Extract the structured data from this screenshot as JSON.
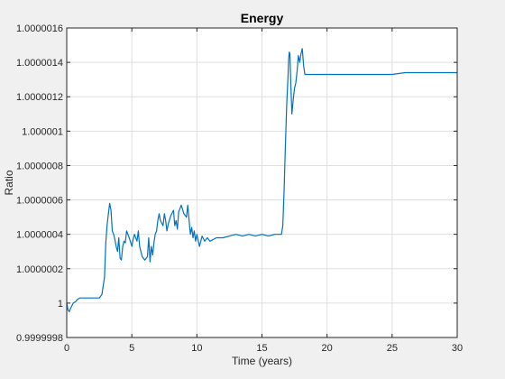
{
  "chart_data": {
    "type": "line",
    "title": "Energy",
    "xlabel": "Time (years)",
    "ylabel": "Ratio",
    "xlim": [
      0,
      30
    ],
    "ylim": [
      0.9999998,
      1.0000016
    ],
    "x_ticks": [
      0,
      5,
      10,
      15,
      20,
      25,
      30
    ],
    "x_tick_labels": [
      "0",
      "5",
      "10",
      "15",
      "20",
      "25",
      "30"
    ],
    "y_ticks": [
      0.9999998,
      1.0,
      1.0000002,
      1.0000004,
      1.0000006,
      1.0000008,
      1.000001,
      1.0000012,
      1.0000014,
      1.0000016
    ],
    "y_tick_labels": [
      "0.9999998",
      "1",
      "1.0000002",
      "1.0000004",
      "1.0000006",
      "1.0000008",
      "1.000001",
      "1.0000012",
      "1.0000014",
      "1.0000016"
    ],
    "grid": true,
    "series": [
      {
        "color": "#0072bd",
        "x": [
          0,
          0.1,
          0.2,
          0.3,
          0.5,
          0.7,
          0.8,
          1.0,
          1.5,
          2.0,
          2.5,
          2.7,
          2.9,
          3.0,
          3.1,
          3.2,
          3.3,
          3.4,
          3.5,
          3.6,
          3.7,
          3.8,
          3.9,
          4.0,
          4.1,
          4.2,
          4.3,
          4.4,
          4.5,
          4.6,
          4.8,
          5.0,
          5.1,
          5.2,
          5.4,
          5.5,
          5.6,
          5.8,
          6.0,
          6.2,
          6.3,
          6.4,
          6.5,
          6.6,
          6.7,
          6.8,
          6.9,
          7.0,
          7.1,
          7.2,
          7.4,
          7.5,
          7.6,
          7.7,
          7.8,
          8.0,
          8.2,
          8.3,
          8.4,
          8.5,
          8.6,
          8.8,
          9.0,
          9.2,
          9.3,
          9.5,
          9.6,
          9.7,
          9.8,
          9.9,
          10.0,
          10.2,
          10.4,
          10.6,
          10.8,
          11.0,
          11.5,
          12.0,
          12.5,
          13.0,
          13.5,
          14.0,
          14.5,
          15.0,
          15.5,
          16.0,
          16.3,
          16.5,
          16.6,
          16.7,
          16.8,
          16.9,
          17.0,
          17.05,
          17.1,
          17.15,
          17.2,
          17.3,
          17.4,
          17.5,
          17.6,
          17.7,
          17.8,
          17.9,
          18.0,
          18.1,
          18.2,
          18.3,
          18.5,
          19,
          20,
          21,
          22,
          23,
          24,
          25,
          26,
          27,
          28,
          29,
          30
        ],
        "y": [
          1.0,
          0.99999996,
          0.99999995,
          0.99999997,
          1.0,
          1.00000001,
          1.00000002,
          1.00000003,
          1.00000003,
          1.00000003,
          1.00000003,
          1.00000005,
          1.00000015,
          1.00000035,
          1.00000045,
          1.00000052,
          1.00000058,
          1.00000054,
          1.00000042,
          1.0000004,
          1.00000037,
          1.00000033,
          1.0000003,
          1.00000038,
          1.00000026,
          1.00000025,
          1.00000033,
          1.00000036,
          1.00000035,
          1.00000042,
          1.00000038,
          1.00000033,
          1.00000037,
          1.0000004,
          1.00000036,
          1.00000042,
          1.00000033,
          1.00000027,
          1.00000025,
          1.00000027,
          1.00000038,
          1.00000024,
          1.00000033,
          1.00000028,
          1.00000035,
          1.0000004,
          1.00000042,
          1.00000048,
          1.00000052,
          1.00000048,
          1.00000045,
          1.00000052,
          1.00000048,
          1.00000042,
          1.00000046,
          1.00000051,
          1.00000054,
          1.00000045,
          1.00000048,
          1.00000043,
          1.00000053,
          1.00000057,
          1.00000052,
          1.0000005,
          1.00000057,
          1.0000004,
          1.00000044,
          1.00000038,
          1.00000042,
          1.00000036,
          1.0000004,
          1.00000033,
          1.00000039,
          1.00000036,
          1.00000038,
          1.00000036,
          1.00000038,
          1.00000038,
          1.00000039,
          1.0000004,
          1.00000039,
          1.0000004,
          1.00000039,
          1.0000004,
          1.00000039,
          1.0000004,
          1.0000004,
          1.0000004,
          1.00000045,
          1.00000065,
          1.00000092,
          1.00000115,
          1.00000132,
          1.00000142,
          1.00000146,
          1.00000145,
          1.0000013,
          1.0000011,
          1.00000118,
          1.00000125,
          1.00000128,
          1.00000135,
          1.00000144,
          1.0000014,
          1.00000145,
          1.00000148,
          1.00000138,
          1.00000133,
          1.00000133,
          1.00000133,
          1.00000133,
          1.00000133,
          1.00000133,
          1.00000133,
          1.00000133,
          1.00000133,
          1.00000134,
          1.00000134,
          1.00000134,
          1.00000134,
          1.00000134
        ]
      }
    ]
  }
}
